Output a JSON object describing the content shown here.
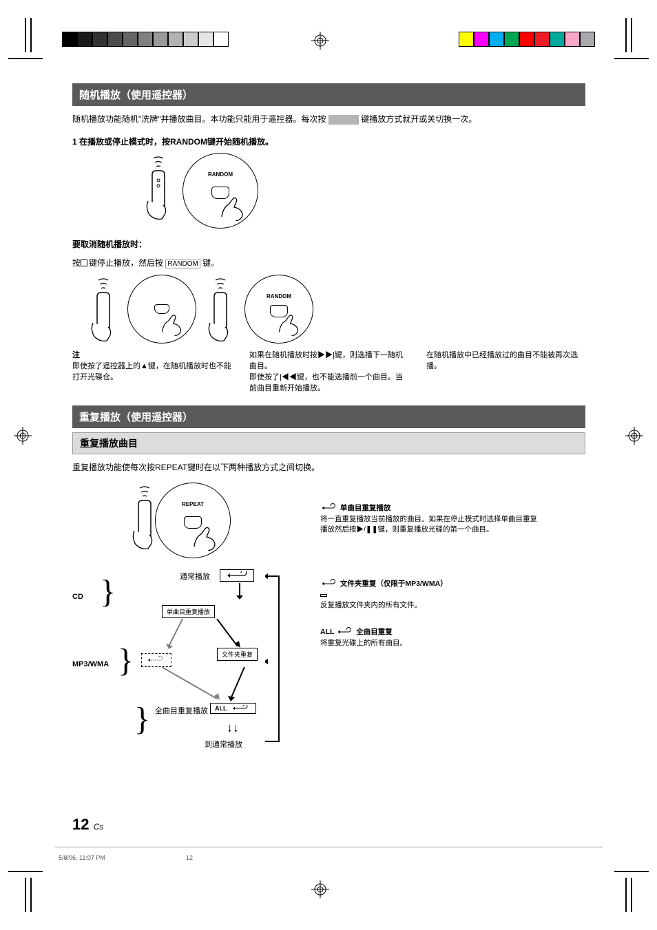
{
  "print_marks": {
    "grayscale_swatches": [
      "#000000",
      "#1a1a1a",
      "#333333",
      "#4d4d4d",
      "#666666",
      "#808080",
      "#999999",
      "#b3b3b3",
      "#cccccc",
      "#e6e6e6",
      "#ffffff"
    ],
    "color_swatches": [
      "#ffff00",
      "#ff00ff",
      "#00aeef",
      "#00a651",
      "#ff0000",
      "#ed1c24",
      "#00a99d",
      "#f7a8c9",
      "#a7a9ac"
    ]
  },
  "heading_random": "随机播放（使用遥控器）",
  "random_intro_prefix": "随机播放功能随机\"洗牌\"并播放曲目。本功能只能用于遥控器。每次按",
  "random_intro_suffix": "键播放方式就开或关切换一次。",
  "ref_chip_text": "RANDOM",
  "step1_label": "1  在播放或停止模式时，按RANDOM键开始随机播放。",
  "btn_random": "RANDOM",
  "cancel_label": "要取消随机播放时：",
  "cancel_text_prefix": "按",
  "cancel_text_mid": "键停止播放，然后按",
  "cancel_text_suffix": "键。",
  "btn_stop_glyph": "■",
  "notes_head": "注",
  "note1": "即使按了遥控器上的▲键，在随机播放时也不能打开光碟仓。",
  "note2": "如果在随机播放时按▶▶|键，则选播下一随机曲目。\n即使按了|◀◀键，也不能选播前一个曲目。当前曲目重新开始播放。",
  "note3": "在随机播放中已经播放过的曲目不能被再次选播。",
  "heading_repeat": "重复播放（使用遥控器）",
  "sub_repeat": "重复播放曲目",
  "repeat_intro": "重复播放功能使每次按REPEAT键时在以下两种播放方式之间切换。",
  "btn_repeat": "REPEAT",
  "diag": {
    "cd_label": "CD",
    "mp3_label": "MP3/WMA",
    "normal": "通常播放",
    "single": "单曲目重复播放",
    "folder_repeat": "文件夹重复",
    "all_box": "ALL",
    "all_repeat": "全曲目重复播放",
    "to_normal": "到通常播放",
    "right_single_title": "单曲目重复播放",
    "right_single_body": "将一直重复播放当前播放的曲目。如果在停止模式时选择单曲目重复播放然后按▶/❚❚键，则重复播放光碟的第一个曲目。",
    "right_folder_title": " 文件夹重复（仅限于MP3/WMA）",
    "right_folder_body": "反复播放文件夹内的所有文件。",
    "right_all_title": "ALL  全曲目重复",
    "right_all_body": "将重复光碟上的所有曲目。"
  },
  "page_number": "12",
  "page_suffix": "Cs",
  "footer_file": "5/8/06, 11:07 PM",
  "footer_page": "12"
}
